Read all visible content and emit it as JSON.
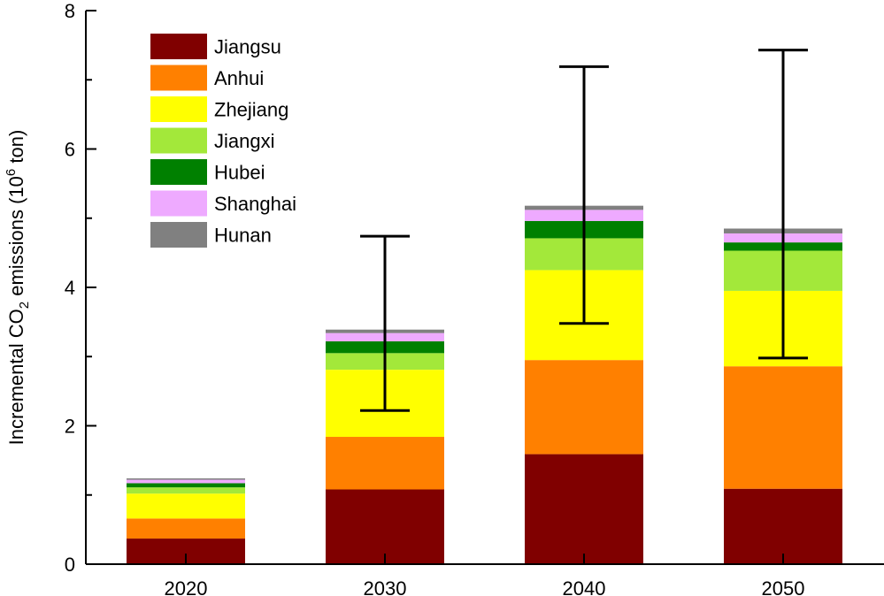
{
  "chart_data": {
    "type": "bar",
    "stacked": true,
    "categories": [
      "2020",
      "2030",
      "2040",
      "2050"
    ],
    "series": [
      {
        "name": "Jiangsu",
        "color": "#800000",
        "values": [
          0.37,
          1.08,
          1.59,
          1.09
        ]
      },
      {
        "name": "Anhui",
        "color": "#FF8000",
        "values": [
          0.29,
          0.76,
          1.36,
          1.77
        ]
      },
      {
        "name": "Zhejiang",
        "color": "#FFFF00",
        "values": [
          0.36,
          0.97,
          1.3,
          1.09
        ]
      },
      {
        "name": "Jiangxi",
        "color": "#A3E83A",
        "values": [
          0.09,
          0.24,
          0.46,
          0.58
        ]
      },
      {
        "name": "Hubei",
        "color": "#008000",
        "values": [
          0.06,
          0.17,
          0.25,
          0.12
        ]
      },
      {
        "name": "Shanghai",
        "color": "#EEAAFF",
        "values": [
          0.05,
          0.12,
          0.16,
          0.13
        ]
      },
      {
        "name": "Hunan",
        "color": "#808080",
        "values": [
          0.02,
          0.05,
          0.06,
          0.07
        ]
      }
    ],
    "error_bars": [
      null,
      {
        "low": 2.22,
        "high": 4.74
      },
      {
        "low": 3.48,
        "high": 7.19
      },
      {
        "low": 2.98,
        "high": 7.43
      }
    ],
    "y_ticks": [
      "0",
      "2",
      "4",
      "6",
      "8"
    ],
    "ylim": [
      0,
      8
    ],
    "ylabel_parts": {
      "before": "Incremental CO",
      "sub": "2",
      "middle": " emissions (10",
      "sup": "6",
      "after": " ton)"
    },
    "xlabel": "",
    "title": "",
    "legend_position": "top-left"
  }
}
